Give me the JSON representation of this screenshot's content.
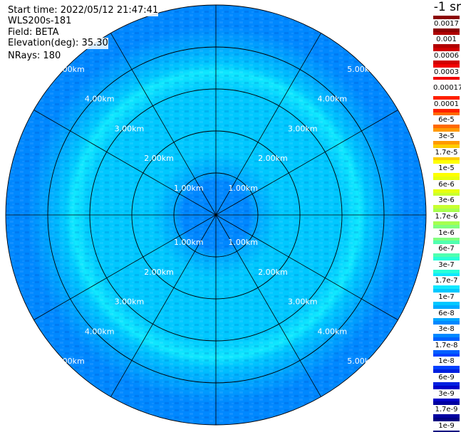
{
  "header": {
    "start_time": "Start time: 2022/05/12 21:47:41",
    "instrument": "WLS200s-181",
    "field": "Field: BETA",
    "elevation": "Elevation(deg): 35.30",
    "nrays": "NRays: 180"
  },
  "colorbar": {
    "unit": "-1 sr",
    "labels": [
      "0.0017",
      "0.001",
      "0.0006",
      "0.0003",
      "0.00017",
      "0.0001",
      "6e-5",
      "3e-5",
      "1.7e-5",
      "1e-5",
      "6e-6",
      "3e-6",
      "1.7e-6",
      "1e-6",
      "6e-7",
      "3e-7",
      "1.7e-7",
      "1e-7",
      "6e-8",
      "3e-8",
      "1.7e-8",
      "1e-8",
      "6e-9",
      "3e-9",
      "1.7e-9",
      "1e-9"
    ],
    "colors": [
      "#8b0000",
      "#b00000",
      "#d00000",
      "#f00000",
      "#ffffff",
      "#ff2000",
      "#ff6a00",
      "#ff9a00",
      "#ffcc00",
      "#ffff00",
      "#e8ff10",
      "#c8ff30",
      "#a6ff50",
      "#80ff80",
      "#50ffb0",
      "#28ffd8",
      "#10e8ff",
      "#00c8ff",
      "#00a8ff",
      "#0088ff",
      "#0060ff",
      "#0040ff",
      "#0020e0",
      "#0000c8",
      "#0000a0",
      "#000080"
    ]
  },
  "chart_data": {
    "type": "heatmap",
    "projection": "polar PPI",
    "range_rings_km": [
      1,
      2,
      3,
      4,
      5
    ],
    "ring_labels": [
      "1.00km",
      "2.00km",
      "3.00km",
      "4.00km",
      "5.00km"
    ],
    "max_range_km": 5,
    "radial_lines_deg": [
      0,
      30,
      60,
      90,
      120,
      150,
      180,
      210,
      240,
      270,
      300,
      330
    ],
    "field": "BETA",
    "background_level": "3e-8",
    "profile": [
      {
        "range_km": 0.0,
        "value": "3e-8"
      },
      {
        "range_km": 0.5,
        "value": "3e-8"
      },
      {
        "range_km": 0.8,
        "value": "3e-8"
      },
      {
        "range_km": 1.0,
        "value": "6e-8"
      },
      {
        "range_km": 1.5,
        "value": "1e-7"
      },
      {
        "range_km": 2.0,
        "value": "1e-7"
      },
      {
        "range_km": 3.0,
        "value": "1e-7"
      },
      {
        "range_km": 3.4,
        "value": "1.7e-7"
      },
      {
        "range_km": 3.6,
        "value": "1e-7"
      },
      {
        "range_km": 4.0,
        "value": "6e-8"
      },
      {
        "range_km": 4.5,
        "value": "3e-8"
      },
      {
        "range_km": 5.0,
        "value": "3e-8"
      }
    ]
  }
}
